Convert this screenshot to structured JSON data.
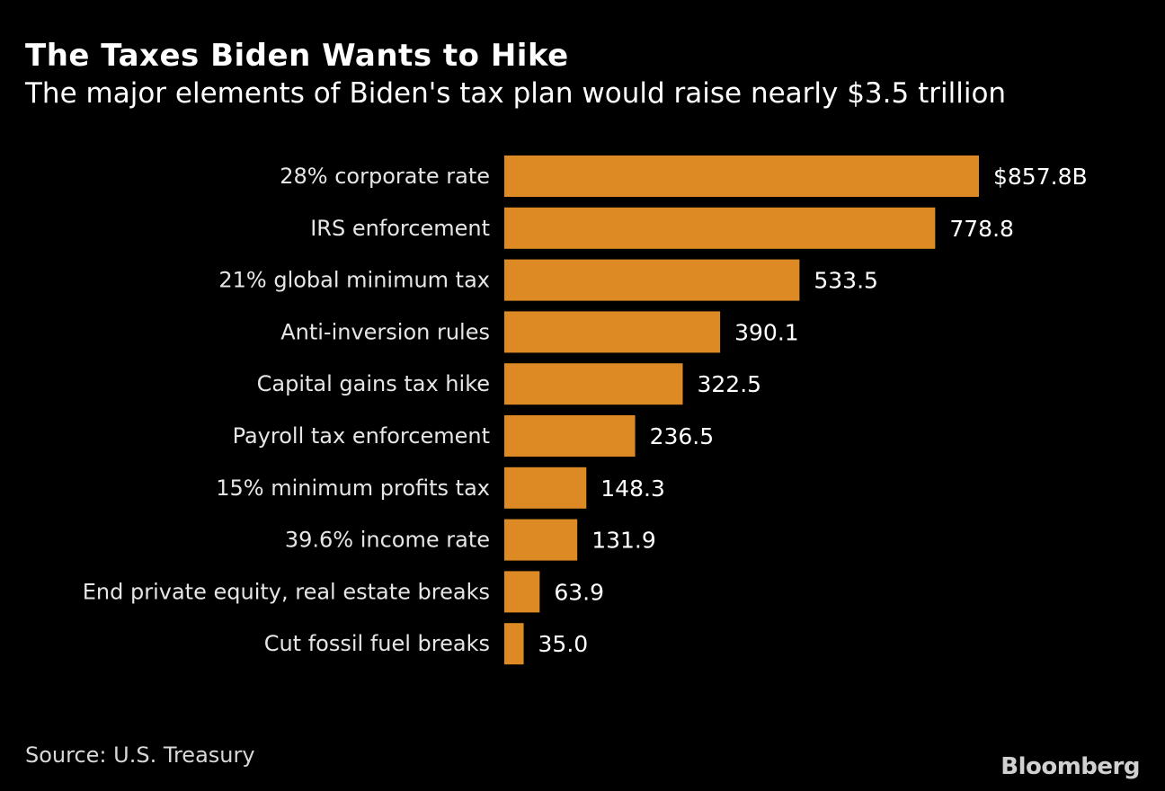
{
  "chart_data": {
    "type": "bar",
    "orientation": "horizontal",
    "title": "The Taxes Biden Wants to Hike",
    "subtitle": "The major elements of Biden's tax plan would raise nearly $3.5 trillion",
    "categories": [
      "28% corporate rate",
      "IRS enforcement",
      "21% global minimum tax",
      "Anti-inversion rules",
      "Capital gains tax hike",
      "Payroll tax enforcement",
      "15% minimum profits tax",
      "39.6% income rate",
      "End private equity, real estate breaks",
      "Cut fossil fuel breaks"
    ],
    "values": [
      857.8,
      778.8,
      533.5,
      390.1,
      322.5,
      236.5,
      148.3,
      131.9,
      63.9,
      35.0
    ],
    "value_labels": [
      "$857.8B",
      "778.8",
      "533.5",
      "390.1",
      "322.5",
      "236.5",
      "148.3",
      "131.9",
      "63.9",
      "35.0"
    ],
    "unit": "billions of dollars",
    "grid": false,
    "xlim": [
      0,
      857.8
    ],
    "bar_color": "#DD8A24",
    "background": "#000000"
  },
  "source": "Source: U.S. Treasury",
  "logo": "Bloomberg"
}
